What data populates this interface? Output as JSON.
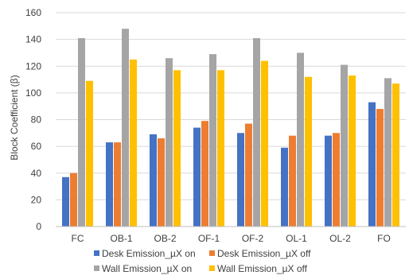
{
  "chart_data": {
    "type": "bar",
    "title": "",
    "xlabel": "",
    "ylabel": "Block Coefficient (β)",
    "ylim": [
      0,
      160
    ],
    "yticks": [
      0,
      20,
      40,
      60,
      80,
      100,
      120,
      140,
      160
    ],
    "grid": "horizontal",
    "legend": "bottom",
    "categories": [
      "FC",
      "OB-1",
      "OB-2",
      "OF-1",
      "OF-2",
      "OL-1",
      "OL-2",
      "FO"
    ],
    "series": [
      {
        "name": "Desk Emission_µX on",
        "color": "#4472C4",
        "values": [
          37,
          63,
          69,
          74,
          70,
          59,
          68,
          93
        ]
      },
      {
        "name": "Desk Emission_µX off",
        "color": "#ED7D31",
        "values": [
          40,
          63,
          66,
          79,
          77,
          68,
          70,
          88
        ]
      },
      {
        "name": "Wall Emission_µX on",
        "color": "#A5A5A5",
        "values": [
          141,
          148,
          126,
          129,
          141,
          130,
          121,
          111
        ]
      },
      {
        "name": "Wall Emission_µX off",
        "color": "#FFC000",
        "values": [
          109,
          125,
          117,
          117,
          124,
          112,
          113,
          107
        ]
      }
    ]
  }
}
